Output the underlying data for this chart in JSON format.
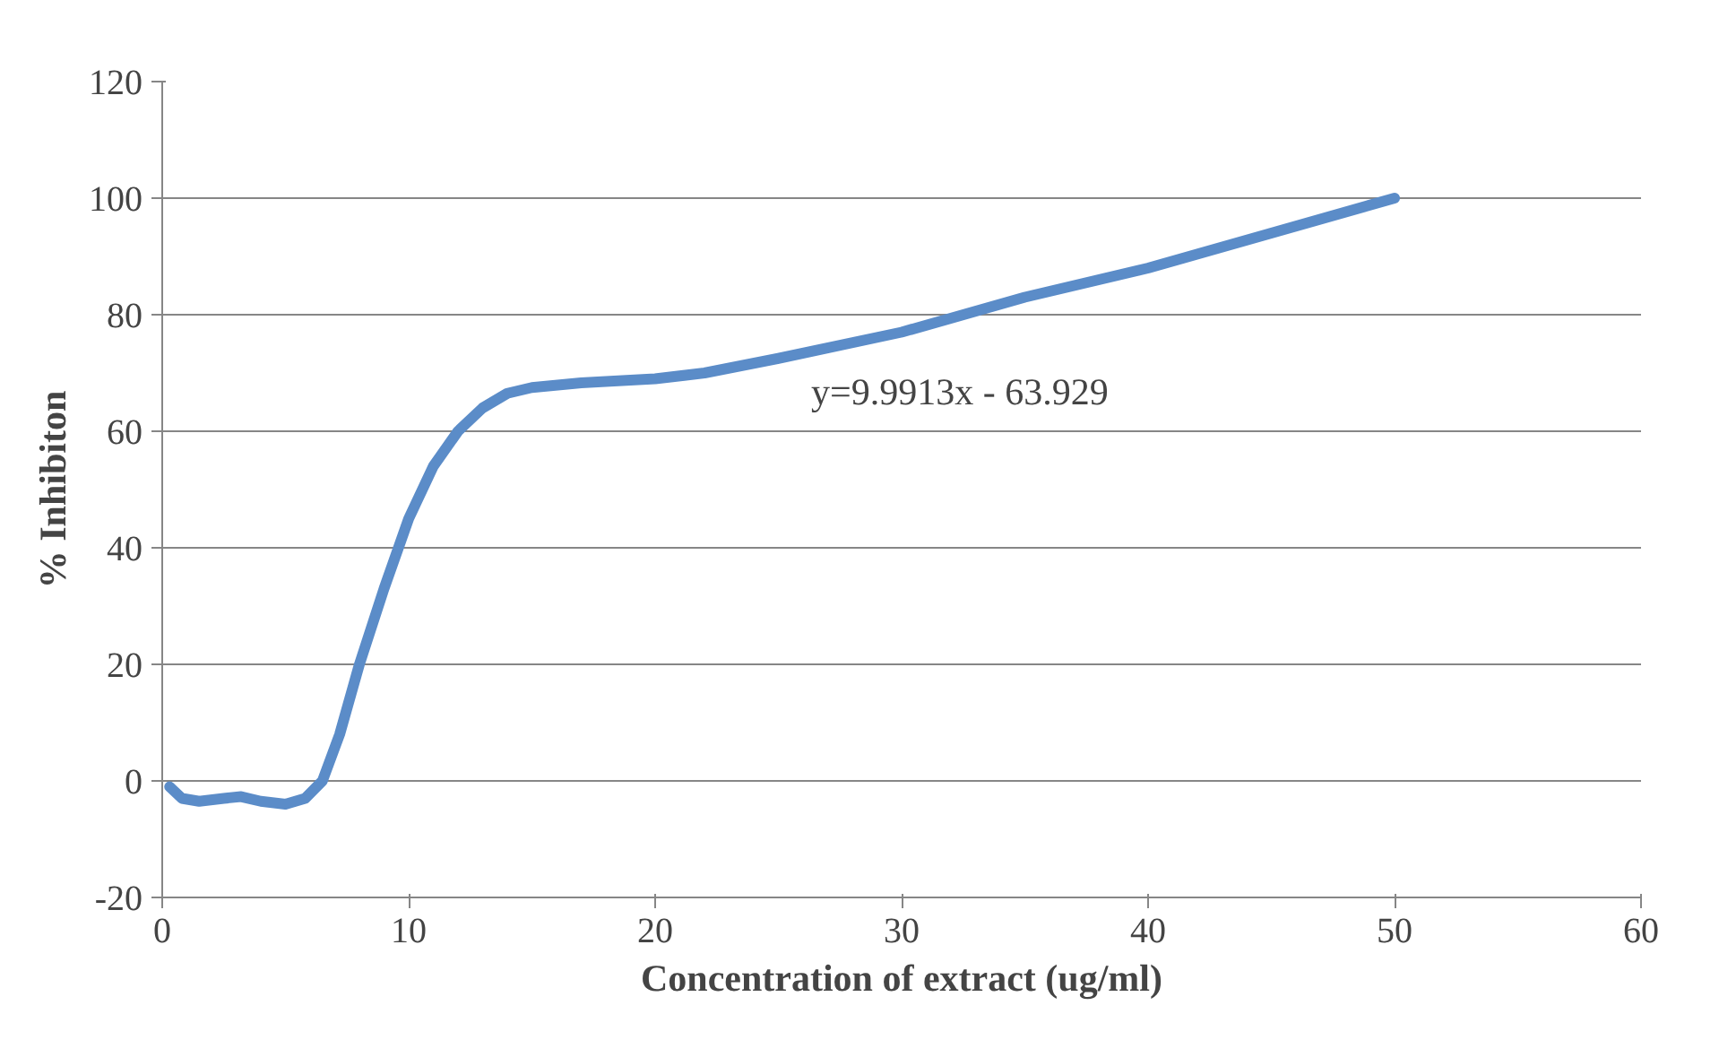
{
  "chart_data": {
    "type": "line",
    "xlabel": "Concentration of extract (ug/ml)",
    "ylabel": "% Inhibiton",
    "x": [
      0.3,
      0.8,
      1.5,
      2.5,
      3.2,
      4,
      5,
      5.8,
      6.5,
      7.2,
      8,
      9,
      10,
      11,
      12,
      13,
      14,
      15,
      17,
      20,
      22,
      25,
      30,
      35,
      40,
      45,
      50
    ],
    "series": [
      {
        "color": "#5b8cc8",
        "values": [
          -1,
          -3,
          -3.5,
          -3,
          -2.7,
          -3.5,
          -4,
          -3,
          0,
          8,
          20,
          33,
          45,
          54,
          60,
          64,
          66.5,
          67.5,
          68.3,
          69,
          70,
          72.5,
          77,
          83,
          88,
          94,
          100
        ]
      }
    ],
    "xlim": [
      0,
      60
    ],
    "xticks": [
      0,
      10,
      20,
      30,
      40,
      50,
      60
    ],
    "ylim": [
      -20,
      120
    ],
    "yticks": [
      -20,
      0,
      20,
      40,
      60,
      80,
      100,
      120
    ],
    "grid": "y",
    "marker": "none",
    "line_style": "solid",
    "annotations": [
      "y=9.9913x - 63.929"
    ]
  }
}
